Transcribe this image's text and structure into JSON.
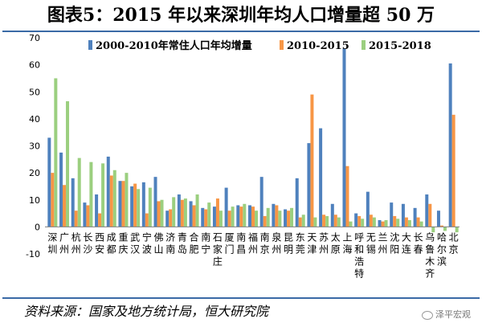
{
  "title": "图表5：2015 年以来深圳年均人口增量超 50 万",
  "source": "资料来源：国家及地方统计局，恒大研究院",
  "watermark": "泽平宏观",
  "chart_data": {
    "type": "bar",
    "categories": [
      "深圳",
      "广州",
      "杭州",
      "长沙",
      "西安",
      "成都",
      "重庆",
      "武汉",
      "宁波",
      "佛山",
      "济南",
      "青岛",
      "合肥",
      "南宁",
      "石家庄",
      "厦门",
      "南昌",
      "福州",
      "南京",
      "泉州",
      "昆明",
      "东莞",
      "天津",
      "苏州",
      "太原",
      "上海",
      "呼和浩特",
      "无锡",
      "兰州",
      "沈阳",
      "大连",
      "长春",
      "乌鲁木齐",
      "哈尔滨",
      "北京"
    ],
    "category_label_chars": [
      [
        "深",
        "圳"
      ],
      [
        "广",
        "州"
      ],
      [
        "杭",
        "州"
      ],
      [
        "长",
        "沙"
      ],
      [
        "西",
        "安"
      ],
      [
        "成",
        "都"
      ],
      [
        "重",
        "庆"
      ],
      [
        "武",
        "汉"
      ],
      [
        "宁",
        "波"
      ],
      [
        "佛",
        "山"
      ],
      [
        "济",
        "南"
      ],
      [
        "青",
        "岛"
      ],
      [
        "合",
        "肥"
      ],
      [
        "南",
        "宁"
      ],
      [
        "石",
        "家",
        "庄"
      ],
      [
        "厦",
        "门"
      ],
      [
        "南",
        "昌"
      ],
      [
        "福",
        "州"
      ],
      [
        "南",
        "京"
      ],
      [
        "泉",
        "州"
      ],
      [
        "昆",
        "明"
      ],
      [
        "东",
        "莞"
      ],
      [
        "天",
        "津"
      ],
      [
        "苏",
        "州"
      ],
      [
        "太",
        "原"
      ],
      [
        "上",
        "海"
      ],
      [
        "呼",
        "和",
        "浩",
        "特"
      ],
      [
        "无",
        "锡"
      ],
      [
        "兰",
        "州"
      ],
      [
        "沈",
        "阳"
      ],
      [
        "大",
        "连"
      ],
      [
        "长",
        "春"
      ],
      [
        "乌",
        "鲁",
        "木",
        "齐"
      ],
      [
        "哈",
        "尔",
        "滨"
      ],
      [
        "北",
        "京"
      ]
    ],
    "series": [
      {
        "name": "2000-2010年常住人口年均增量",
        "color": "#4f81bd",
        "values": [
          33,
          27.5,
          18,
          9,
          12,
          26,
          17,
          15,
          16.5,
          18.5,
          6,
          12,
          9.5,
          7,
          7.5,
          14.5,
          8,
          8,
          18.5,
          8.5,
          6.5,
          18,
          31,
          36.5,
          8.5,
          66,
          5,
          13,
          2.5,
          9,
          8.5,
          7,
          12,
          6,
          60.5
        ]
      },
      {
        "name": "2010-2015",
        "color": "#f79646",
        "values": [
          20,
          15.5,
          6,
          8,
          5,
          19,
          17,
          16,
          5,
          9.5,
          6.5,
          10,
          8,
          6.5,
          10.5,
          6,
          7.5,
          7.5,
          4,
          8,
          6,
          3.5,
          49,
          4.5,
          4.5,
          22.5,
          4,
          4.5,
          2,
          4,
          3.5,
          3.5,
          8.5,
          0.5,
          41.5
        ]
      },
      {
        "name": "2015-2018",
        "color": "#9bcf7f",
        "values": [
          55,
          46.5,
          25.5,
          24,
          23.5,
          21,
          20,
          14,
          14.5,
          10,
          11,
          10.5,
          12,
          9,
          6,
          7.5,
          8.5,
          6,
          7,
          6,
          7,
          4.5,
          3.5,
          4,
          3.5,
          2,
          3,
          3.5,
          2.5,
          3,
          2.5,
          2,
          -2,
          -1.5,
          -2
        ]
      }
    ],
    "y_ticks": [
      "70",
      "60",
      "50",
      "40",
      "30",
      "20",
      "10",
      "0",
      "-10"
    ],
    "ylim": [
      -10,
      70
    ],
    "grid": false,
    "legend_position": "top"
  }
}
